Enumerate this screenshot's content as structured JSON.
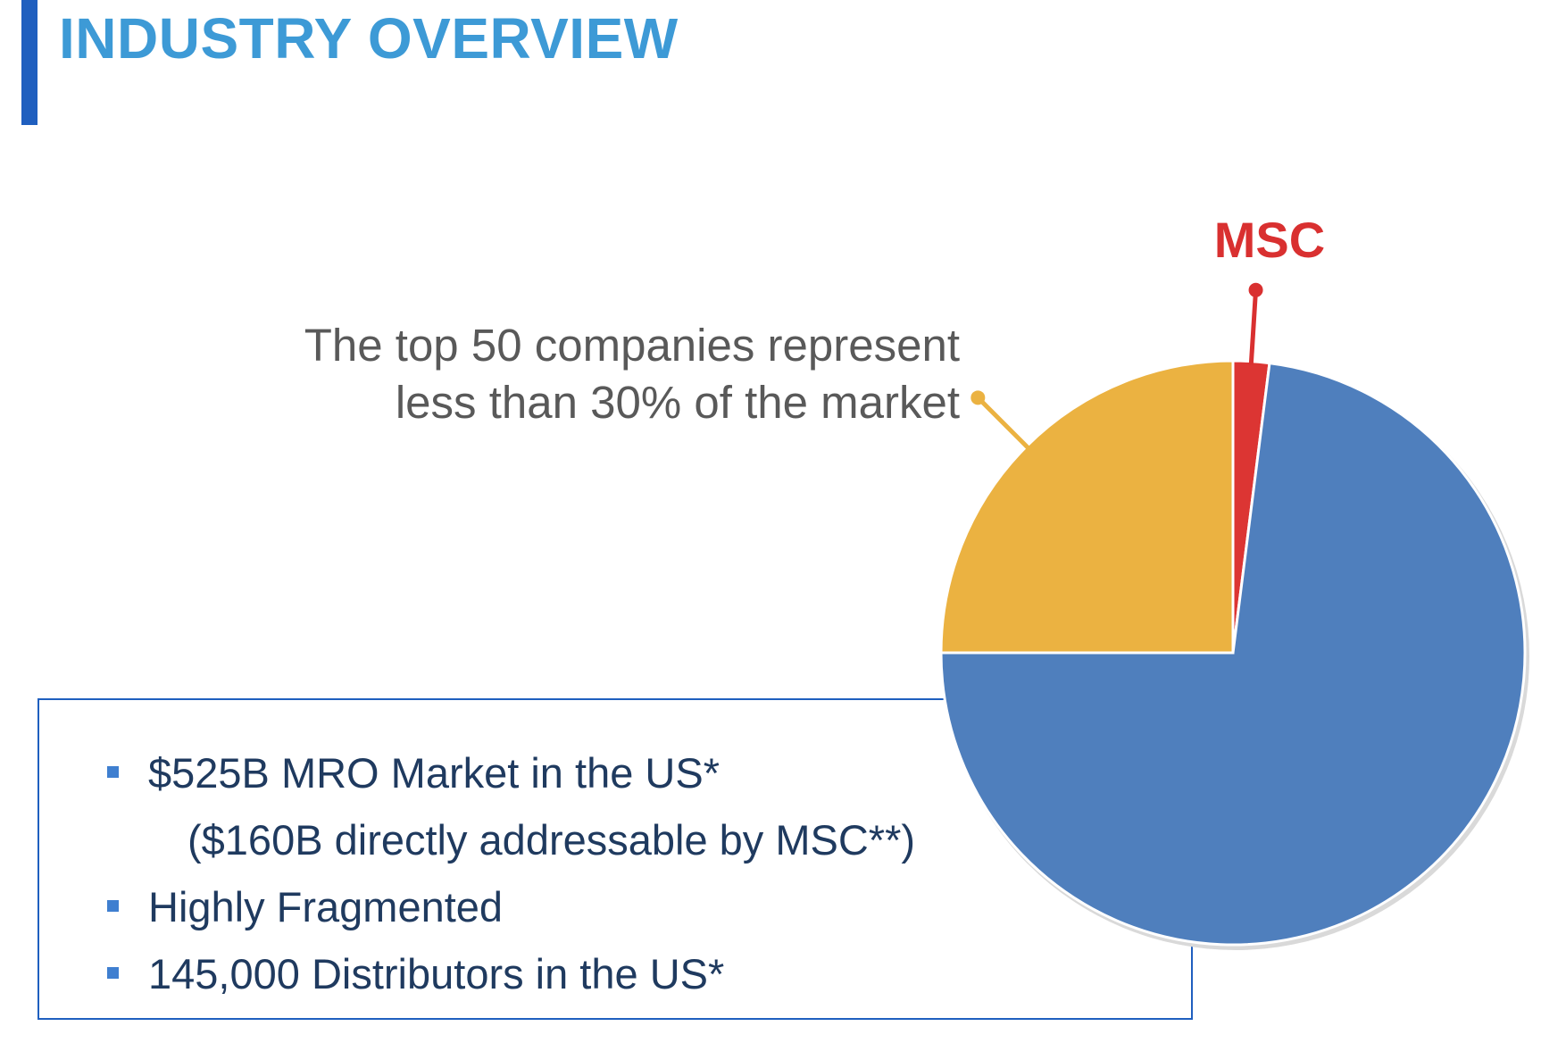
{
  "page": {
    "title": "INDUSTRY OVERVIEW",
    "bullets": [
      {
        "text": "$525B MRO Market in the US*",
        "bulleted": true
      },
      {
        "text": "($160B directly addressable by MSC**)",
        "bulleted": false
      },
      {
        "text": "Highly Fragmented",
        "bulleted": true
      },
      {
        "text": "145,000 Distributors in the US*",
        "bulleted": true
      }
    ]
  },
  "chart_data": {
    "type": "pie",
    "title": "",
    "slices": [
      {
        "name": "MSC",
        "value": 2,
        "color": "#dc3533"
      },
      {
        "name": "",
        "value": 73,
        "color": "#4f7fbd"
      },
      {
        "name": "",
        "value": 25,
        "color": "#ebb241"
      }
    ],
    "annotations": [
      {
        "text": "MSC",
        "target_slice": 0,
        "color": "#d93030"
      },
      {
        "text": "The top 50 companies represent",
        "target_slice": 2,
        "color": "#595959"
      },
      {
        "text": "less than 30% of the market",
        "target_slice": 2,
        "color": "#595959"
      }
    ],
    "legend": false
  }
}
